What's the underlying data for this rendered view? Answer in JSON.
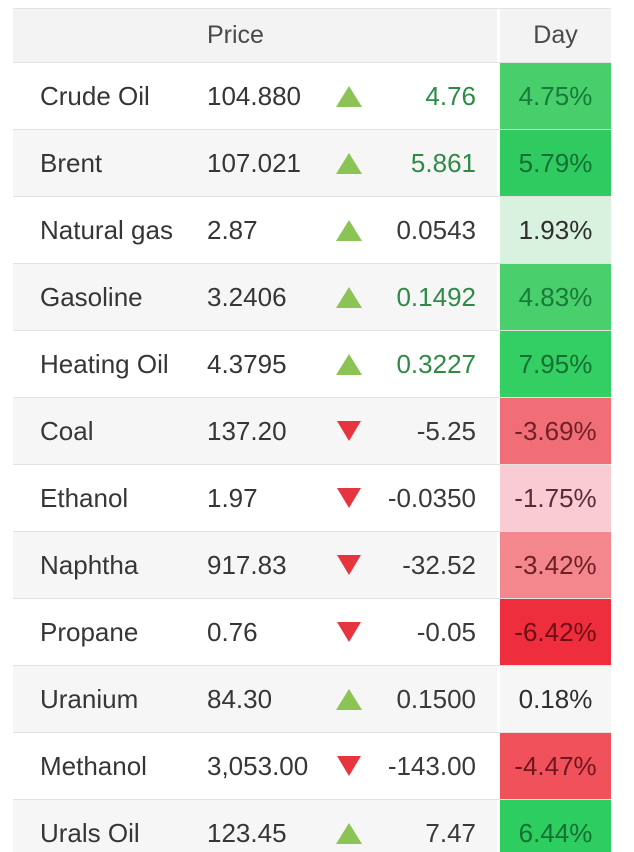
{
  "header": {
    "price_label": "Price",
    "day_label": "Day"
  },
  "colors": {
    "up_triangle": "#8bc355",
    "down_triangle": "#e73540",
    "change_positive_text": "#2e8b46",
    "change_neutral_text": "#3a3a3a",
    "header_text": "#4a4a4a",
    "cell_text": "#363636",
    "row_alt_bg": "#f6f6f6",
    "header_bg": "#f3f3f3",
    "border": "#e2e2e2"
  },
  "rows": [
    {
      "name": "Crude Oil",
      "price": "104.880",
      "direction": "up",
      "change": "4.76",
      "change_color": "green",
      "day": "4.75%",
      "day_bg": "#48ce6b",
      "day_text": "#177b3a"
    },
    {
      "name": "Brent",
      "price": "107.021",
      "direction": "up",
      "change": "5.861",
      "change_color": "green",
      "day": "5.79%",
      "day_bg": "#2fcb60",
      "day_text": "#156f35"
    },
    {
      "name": "Natural gas",
      "price": "2.87",
      "direction": "up",
      "change": "0.0543",
      "change_color": "neutral",
      "day": "1.93%",
      "day_bg": "#d9f2df",
      "day_text": "#2e2e2e"
    },
    {
      "name": "Gasoline",
      "price": "3.2406",
      "direction": "up",
      "change": "0.1492",
      "change_color": "green",
      "day": "4.83%",
      "day_bg": "#4acf6d",
      "day_text": "#177b3a"
    },
    {
      "name": "Heating Oil",
      "price": "4.3795",
      "direction": "up",
      "change": "0.3227",
      "change_color": "green",
      "day": "7.95%",
      "day_bg": "#33cf62",
      "day_text": "#156f35"
    },
    {
      "name": "Coal",
      "price": "137.20",
      "direction": "down",
      "change": "-5.25",
      "change_color": "neutral",
      "day": "-3.69%",
      "day_bg": "#f16e77",
      "day_text": "#6f2129"
    },
    {
      "name": "Ethanol",
      "price": "1.97",
      "direction": "down",
      "change": "-0.0350",
      "change_color": "neutral",
      "day": "-1.75%",
      "day_bg": "#f8ccd2",
      "day_text": "#5a2b33"
    },
    {
      "name": "Naphtha",
      "price": "917.83",
      "direction": "down",
      "change": "-32.52",
      "change_color": "neutral",
      "day": "-3.42%",
      "day_bg": "#f4868d",
      "day_text": "#6b1f27"
    },
    {
      "name": "Propane",
      "price": "0.76",
      "direction": "down",
      "change": "-0.05",
      "change_color": "neutral",
      "day": "-6.42%",
      "day_bg": "#ee2e3c",
      "day_text": "#6e0d15"
    },
    {
      "name": "Uranium",
      "price": "84.30",
      "direction": "up",
      "change": "0.1500",
      "change_color": "neutral",
      "day": "0.18%",
      "day_bg": "transparent",
      "day_text": "#2e2e2e"
    },
    {
      "name": "Methanol",
      "price": "3,053.00",
      "direction": "down",
      "change": "-143.00",
      "change_color": "neutral",
      "day": "-4.47%",
      "day_bg": "#f0515b",
      "day_text": "#6f171f"
    },
    {
      "name": "Urals Oil",
      "price": "123.45",
      "direction": "up",
      "change": "7.47",
      "change_color": "neutral",
      "day": "6.44%",
      "day_bg": "#2dcd60",
      "day_text": "#156f35"
    }
  ]
}
